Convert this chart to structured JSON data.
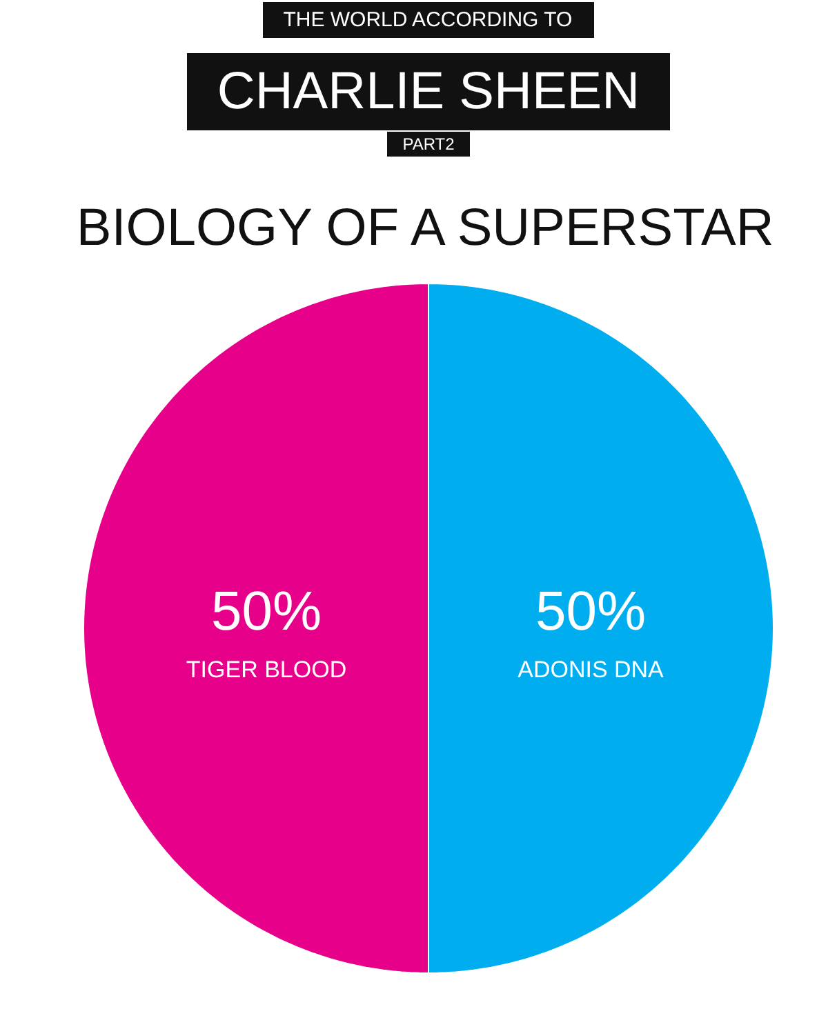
{
  "chart_data": {
    "type": "pie",
    "title": "BIOLOGY OF A SUPERSTAR",
    "annotations": [
      "THE WORLD ACCORDING TO",
      "CHARLIE SHEEN",
      "PART2"
    ],
    "categories": [
      "TIGER BLOOD",
      "ADONIS DNA"
    ],
    "values": [
      50,
      50
    ],
    "colors": [
      "#e6008a",
      "#00adef"
    ],
    "value_labels": [
      "50%",
      "50%"
    ]
  }
}
